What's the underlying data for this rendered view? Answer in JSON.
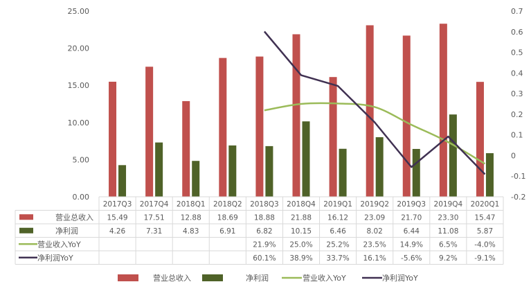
{
  "chart_data": {
    "type": "bar",
    "categories": [
      "2017Q3",
      "2017Q4",
      "2018Q1",
      "2018Q2",
      "2018Q3",
      "2018Q4",
      "2019Q1",
      "2019Q2",
      "2019Q3",
      "2019Q4",
      "2020Q1"
    ],
    "series": [
      {
        "name": "营业总收入",
        "kind": "bar",
        "axis": "left",
        "color": "#c0504d",
        "values": [
          15.49,
          17.51,
          12.88,
          18.69,
          18.88,
          21.88,
          16.12,
          23.09,
          21.7,
          23.3,
          15.47
        ],
        "labels": [
          "15.49",
          "17.51",
          "12.88",
          "18.69",
          "18.88",
          "21.88",
          "16.12",
          "23.09",
          "21.70",
          "23.30",
          "15.47"
        ]
      },
      {
        "name": "净利润",
        "kind": "bar",
        "axis": "left",
        "color": "#4f6228",
        "values": [
          4.26,
          7.31,
          4.83,
          6.91,
          6.82,
          10.15,
          6.46,
          8.02,
          6.44,
          11.08,
          5.87
        ],
        "labels": [
          "4.26",
          "7.31",
          "4.83",
          "6.91",
          "6.82",
          "10.15",
          "6.46",
          "8.02",
          "6.44",
          "11.08",
          "5.87"
        ]
      },
      {
        "name": "营业收入YoY",
        "kind": "line",
        "axis": "right",
        "color": "#9bbb59",
        "values": [
          null,
          null,
          null,
          null,
          0.219,
          0.25,
          0.252,
          0.235,
          0.149,
          0.065,
          -0.04
        ],
        "labels": [
          "",
          "",
          "",
          "",
          "21.9%",
          "25.0%",
          "25.2%",
          "23.5%",
          "14.9%",
          "6.5%",
          "-4.0%"
        ]
      },
      {
        "name": "净利润YoY",
        "kind": "line",
        "axis": "right",
        "color": "#403152",
        "values": [
          null,
          null,
          null,
          null,
          0.601,
          0.389,
          0.337,
          0.161,
          -0.056,
          0.092,
          -0.091
        ],
        "labels": [
          "",
          "",
          "",
          "",
          "60.1%",
          "38.9%",
          "33.7%",
          "16.1%",
          "-5.6%",
          "9.2%",
          "-9.1%"
        ]
      }
    ],
    "y_left": {
      "min": 0,
      "max": 25,
      "ticks": [
        0,
        5,
        10,
        15,
        20,
        25
      ],
      "tick_labels": [
        "0.00",
        "5.00",
        "10.00",
        "15.00",
        "20.00",
        "25.00"
      ]
    },
    "y_right": {
      "min": -0.2,
      "max": 0.7,
      "ticks": [
        -0.2,
        -0.1,
        0,
        0.1,
        0.2,
        0.3,
        0.4,
        0.5,
        0.6,
        0.7
      ],
      "tick_labels": [
        "-0.2",
        "-0.1",
        "0",
        "0.1",
        "0.2",
        "0.3",
        "0.4",
        "0.5",
        "0.6",
        "0.7"
      ]
    },
    "title": "",
    "xlabel": "",
    "ylabel": "",
    "grid": false,
    "legend": "bottom",
    "data_table": true
  }
}
